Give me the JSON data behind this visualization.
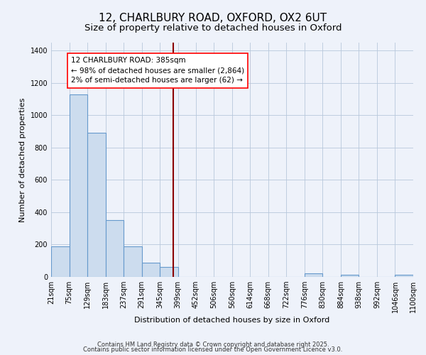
{
  "title1": "12, CHARLBURY ROAD, OXFORD, OX2 6UT",
  "title2": "Size of property relative to detached houses in Oxford",
  "xlabel": "Distribution of detached houses by size in Oxford",
  "ylabel": "Number of detached properties",
  "bin_labels": [
    "21sqm",
    "75sqm",
    "129sqm",
    "183sqm",
    "237sqm",
    "291sqm",
    "345sqm",
    "399sqm",
    "452sqm",
    "506sqm",
    "560sqm",
    "614sqm",
    "668sqm",
    "722sqm",
    "776sqm",
    "830sqm",
    "884sqm",
    "938sqm",
    "992sqm",
    "1046sqm",
    "1100sqm"
  ],
  "heights": [
    190,
    1130,
    890,
    350,
    190,
    90,
    60,
    0,
    0,
    0,
    0,
    0,
    0,
    0,
    20,
    0,
    15,
    0,
    0,
    15
  ],
  "bar_color": "#ccdcee",
  "bar_edge_color": "#6699cc",
  "vline_x_bin": 6,
  "vline_color": "#8b0000",
  "annotation_text": "12 CHARLBURY ROAD: 385sqm\n← 98% of detached houses are smaller (2,864)\n2% of semi-detached houses are larger (62) →",
  "ylim": [
    0,
    1450
  ],
  "yticks": [
    0,
    200,
    400,
    600,
    800,
    1000,
    1200,
    1400
  ],
  "background_color": "#eef2fa",
  "footer1": "Contains HM Land Registry data © Crown copyright and database right 2025.",
  "footer2": "Contains public sector information licensed under the Open Government Licence v3.0.",
  "title_fontsize": 11,
  "subtitle_fontsize": 9.5,
  "axis_label_fontsize": 8,
  "tick_fontsize": 7,
  "annot_fontsize": 7.5
}
